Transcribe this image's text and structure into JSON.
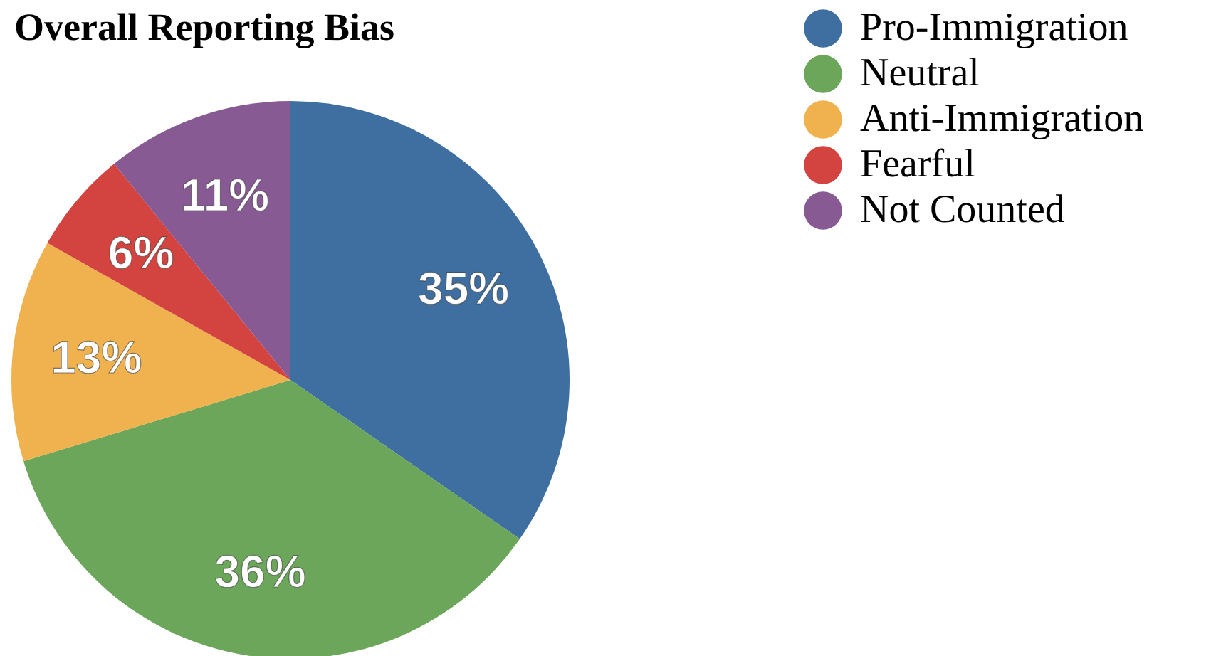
{
  "chart_data": {
    "type": "pie",
    "title": "Overall Reporting Bias",
    "categories": [
      "Pro-Immigration",
      "Neutral",
      "Anti-Immigration",
      "Fearful",
      "Not Counted"
    ],
    "values": [
      35,
      36,
      13,
      6,
      11
    ],
    "value_labels": [
      "35%",
      "36%",
      "13%",
      "6%",
      "11%"
    ],
    "colors": [
      "#3e6fa0",
      "#6ba65a",
      "#efb24e",
      "#d34440",
      "#875a93"
    ],
    "legend": "top right"
  }
}
